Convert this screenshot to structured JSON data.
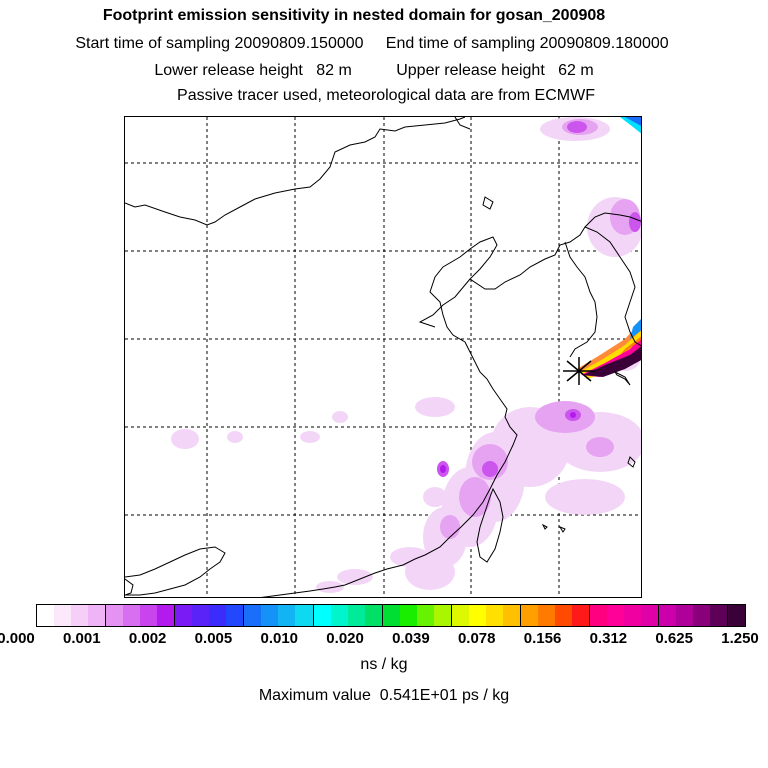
{
  "header": {
    "title": "Footprint emission sensitivity in nested domain for gosan_200908",
    "line1": "Start time of sampling 20090809.150000     End time of sampling 20090809.180000",
    "line2": "Lower release height   82 m          Upper release height   62 m",
    "line3": "Passive tracer used, meteorological data are from ECMWF"
  },
  "colorbar": {
    "colors": [
      "#ffffff",
      "#fbe8fb",
      "#f6cff8",
      "#efb4f5",
      "#e493f2",
      "#d86ef0",
      "#c845ee",
      "#b21aee",
      "#7a1af5",
      "#5a23f8",
      "#3c2cfb",
      "#2248fd",
      "#1a6ffa",
      "#1592f7",
      "#12b4f4",
      "#0fd8f1",
      "#00ffff",
      "#00f5cc",
      "#00eb99",
      "#00e066",
      "#00dd33",
      "#1aee00",
      "#66f200",
      "#aaf500",
      "#ddf800",
      "#ffff00",
      "#ffe000",
      "#ffc000",
      "#ff9f00",
      "#ff7a00",
      "#ff4a00",
      "#ff1a1a",
      "#ff0080",
      "#ff0099",
      "#f000a0",
      "#e000a8",
      "#cc00aa",
      "#b0009a",
      "#8a007a",
      "#5e0058",
      "#3a0038"
    ],
    "tick_labels": [
      "0.000",
      "0.001",
      "0.002",
      "0.005",
      "0.010",
      "0.020",
      "0.039",
      "0.078",
      "0.156",
      "0.312",
      "0.625",
      "1.250"
    ],
    "unit": "ns / kg"
  },
  "footer": {
    "max_value": "Maximum value  0.541E+01 ps / kg"
  }
}
